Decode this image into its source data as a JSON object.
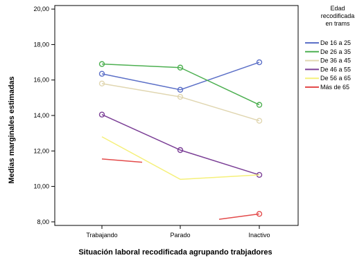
{
  "chart_data": {
    "type": "line",
    "title": "",
    "xlabel": "Situación laboral recodificada agrupando trabjadores",
    "ylabel": "Medias marginales estimadas",
    "categories": [
      "Trabajando",
      "Parado",
      "Inactivo"
    ],
    "yticks": [
      "8,00",
      "10,00",
      "12,00",
      "14,00",
      "16,00",
      "18,00",
      "20,00"
    ],
    "ylim": [
      7.8,
      20.2
    ],
    "grid": false,
    "legend_position": "right",
    "legend_title": [
      "Edad",
      "recodificada",
      "en trams"
    ],
    "series": [
      {
        "name": "De 16 a 25",
        "color": "#5b6fc7",
        "values": [
          16.35,
          15.45,
          17.0
        ]
      },
      {
        "name": "De 26 a 35",
        "color": "#4caf50",
        "values": [
          16.9,
          16.7,
          14.6
        ]
      },
      {
        "name": "De 36 a 45",
        "color": "#e0d6b0",
        "values": [
          15.8,
          15.05,
          13.7
        ]
      },
      {
        "name": "De 46 a 55",
        "color": "#7b3f96",
        "values": [
          14.05,
          12.05,
          10.65
        ]
      },
      {
        "name": "De 56 a 65",
        "color": "#f5f07a",
        "values": [
          12.8,
          10.4,
          10.65
        ]
      },
      {
        "name": "Más de 65",
        "color": "#e34a4a",
        "values": [
          11.55,
          null,
          8.45
        ]
      }
    ]
  }
}
